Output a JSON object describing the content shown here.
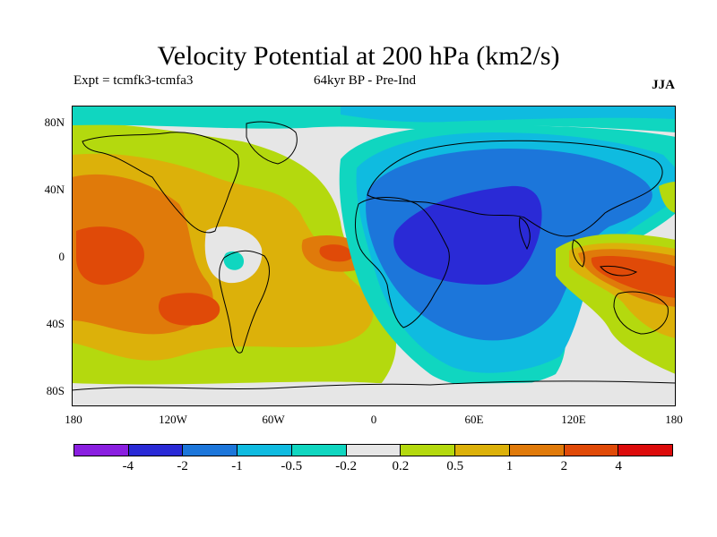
{
  "title": "Velocity Potential at 200 hPa (km2/s)",
  "subtitle_left": "Expt = tcmfk3-tcmfa3",
  "subtitle_center": "64kyr BP - Pre-Ind",
  "season": "JJA",
  "lat_labels": [
    "80N",
    "40N",
    "0",
    "40S",
    "80S"
  ],
  "lon_labels": [
    "180",
    "120W",
    "60W",
    "0",
    "60E",
    "120E",
    "180"
  ],
  "colorbar": {
    "colors": [
      "#8a1fe0",
      "#2a2ad6",
      "#1c76da",
      "#0fbbe0",
      "#10d6c0",
      "#e6e6e6",
      "#b4d90e",
      "#dcb10a",
      "#e07a0a",
      "#e04a08",
      "#dc0b0b"
    ],
    "labels": [
      "-4",
      "-2",
      "-1",
      "-0.5",
      "-0.2",
      "0.2",
      "0.5",
      "1",
      "2",
      "4"
    ]
  }
}
